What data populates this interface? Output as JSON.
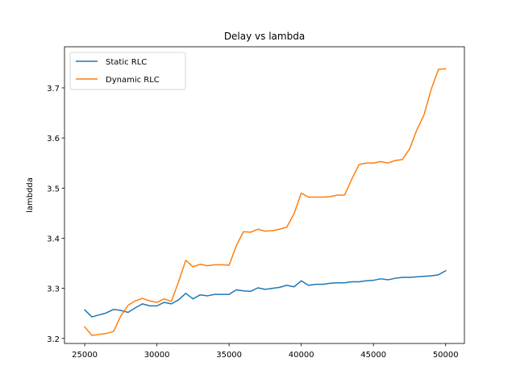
{
  "chart_data": {
    "type": "line",
    "title": "Delay vs lambda",
    "xlabel": "",
    "ylabel": "lambdda",
    "xlim": [
      23600,
      51300
    ],
    "ylim": [
      3.19,
      3.782
    ],
    "x_ticks": [
      25000,
      30000,
      35000,
      40000,
      45000,
      50000
    ],
    "y_ticks": [
      3.2,
      3.3,
      3.4,
      3.5,
      3.6,
      3.7
    ],
    "y_tick_labels": [
      "3.2",
      "3.3",
      "3.4",
      "3.5",
      "3.6",
      "3.7"
    ],
    "grid": false,
    "legend_position": "upper-left",
    "x": [
      25000,
      25500,
      26000,
      26500,
      27000,
      27500,
      28000,
      28500,
      29000,
      29500,
      30000,
      30500,
      31000,
      31500,
      32000,
      32500,
      33000,
      33500,
      34000,
      34500,
      35000,
      35500,
      36000,
      36500,
      37000,
      37500,
      38000,
      38500,
      39000,
      39500,
      40000,
      40500,
      41000,
      41500,
      42000,
      42500,
      43000,
      43500,
      44000,
      44500,
      45000,
      45500,
      46000,
      46500,
      47000,
      47500,
      48000,
      48500,
      49000,
      49500,
      50000
    ],
    "series": [
      {
        "name": "Static RLC",
        "color": "#1f77b4",
        "values": [
          3.257,
          3.243,
          3.247,
          3.251,
          3.258,
          3.256,
          3.252,
          3.261,
          3.269,
          3.265,
          3.265,
          3.272,
          3.269,
          3.277,
          3.29,
          3.279,
          3.287,
          3.285,
          3.288,
          3.288,
          3.288,
          3.297,
          3.295,
          3.294,
          3.301,
          3.298,
          3.3,
          3.302,
          3.306,
          3.303,
          3.315,
          3.306,
          3.308,
          3.308,
          3.31,
          3.311,
          3.311,
          3.313,
          3.313,
          3.315,
          3.316,
          3.319,
          3.317,
          3.32,
          3.322,
          3.322,
          3.323,
          3.324,
          3.325,
          3.327,
          3.335
        ]
      },
      {
        "name": "Dynamic RLC",
        "color": "#ff7f0e",
        "values": [
          3.223,
          3.206,
          3.208,
          3.21,
          3.214,
          3.245,
          3.266,
          3.275,
          3.28,
          3.275,
          3.272,
          3.279,
          3.274,
          3.313,
          3.356,
          3.343,
          3.348,
          3.345,
          3.347,
          3.347,
          3.346,
          3.385,
          3.413,
          3.412,
          3.418,
          3.414,
          3.415,
          3.418,
          3.422,
          3.449,
          3.49,
          3.482,
          3.482,
          3.482,
          3.483,
          3.486,
          3.486,
          3.518,
          3.547,
          3.55,
          3.55,
          3.553,
          3.55,
          3.555,
          3.557,
          3.578,
          3.616,
          3.646,
          3.697,
          3.737,
          3.738
        ]
      }
    ]
  }
}
